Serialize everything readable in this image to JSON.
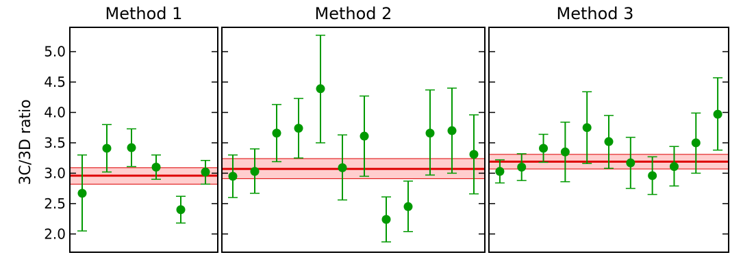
{
  "chart_data": {
    "type": "scatter",
    "ylabel": "3C/3D ratio",
    "ylim": [
      1.7,
      5.4
    ],
    "yticks": [
      "5.0",
      "4.5",
      "4.0",
      "3.5",
      "3.0",
      "2.5",
      "2.0"
    ],
    "grid": false,
    "colors": {
      "points": "#009900",
      "band_line": "#dd0000",
      "band_fill": "#ffb3b3"
    },
    "panels": [
      {
        "title": "Method 1",
        "mean": 2.96,
        "band": [
          2.82,
          3.09
        ],
        "points": [
          {
            "y": 2.67,
            "lo": 2.05,
            "hi": 3.3
          },
          {
            "y": 3.41,
            "lo": 3.02,
            "hi": 3.8
          },
          {
            "y": 3.42,
            "lo": 3.11,
            "hi": 3.73
          },
          {
            "y": 3.1,
            "lo": 2.9,
            "hi": 3.3
          },
          {
            "y": 2.4,
            "lo": 2.18,
            "hi": 2.62
          },
          {
            "y": 3.02,
            "lo": 2.82,
            "hi": 3.21
          }
        ]
      },
      {
        "title": "Method 2",
        "mean": 3.07,
        "band": [
          2.91,
          3.24
        ],
        "points": [
          {
            "y": 2.95,
            "lo": 2.6,
            "hi": 3.3
          },
          {
            "y": 3.03,
            "lo": 2.67,
            "hi": 3.4
          },
          {
            "y": 3.66,
            "lo": 3.19,
            "hi": 4.13
          },
          {
            "y": 3.74,
            "lo": 3.25,
            "hi": 4.23
          },
          {
            "y": 4.39,
            "lo": 3.5,
            "hi": 5.27
          },
          {
            "y": 3.09,
            "lo": 2.56,
            "hi": 3.63
          },
          {
            "y": 3.61,
            "lo": 2.95,
            "hi": 4.27
          },
          {
            "y": 2.24,
            "lo": 1.87,
            "hi": 2.61
          },
          {
            "y": 2.45,
            "lo": 2.04,
            "hi": 2.87
          },
          {
            "y": 3.66,
            "lo": 2.97,
            "hi": 4.37
          },
          {
            "y": 3.7,
            "lo": 3.0,
            "hi": 4.4
          },
          {
            "y": 3.31,
            "lo": 2.66,
            "hi": 3.96
          }
        ]
      },
      {
        "title": "Method 3",
        "mean": 3.19,
        "band": [
          3.07,
          3.31
        ],
        "points": [
          {
            "y": 3.03,
            "lo": 2.84,
            "hi": 3.22
          },
          {
            "y": 3.1,
            "lo": 2.88,
            "hi": 3.32
          },
          {
            "y": 3.41,
            "lo": 3.18,
            "hi": 3.64
          },
          {
            "y": 3.35,
            "lo": 2.86,
            "hi": 3.84
          },
          {
            "y": 3.75,
            "lo": 3.16,
            "hi": 4.34
          },
          {
            "y": 3.52,
            "lo": 3.08,
            "hi": 3.95
          },
          {
            "y": 3.17,
            "lo": 2.75,
            "hi": 3.59
          },
          {
            "y": 2.96,
            "lo": 2.65,
            "hi": 3.27
          },
          {
            "y": 3.11,
            "lo": 2.79,
            "hi": 3.44
          },
          {
            "y": 3.5,
            "lo": 3.0,
            "hi": 3.99
          },
          {
            "y": 3.97,
            "lo": 3.38,
            "hi": 4.57
          }
        ]
      }
    ]
  }
}
